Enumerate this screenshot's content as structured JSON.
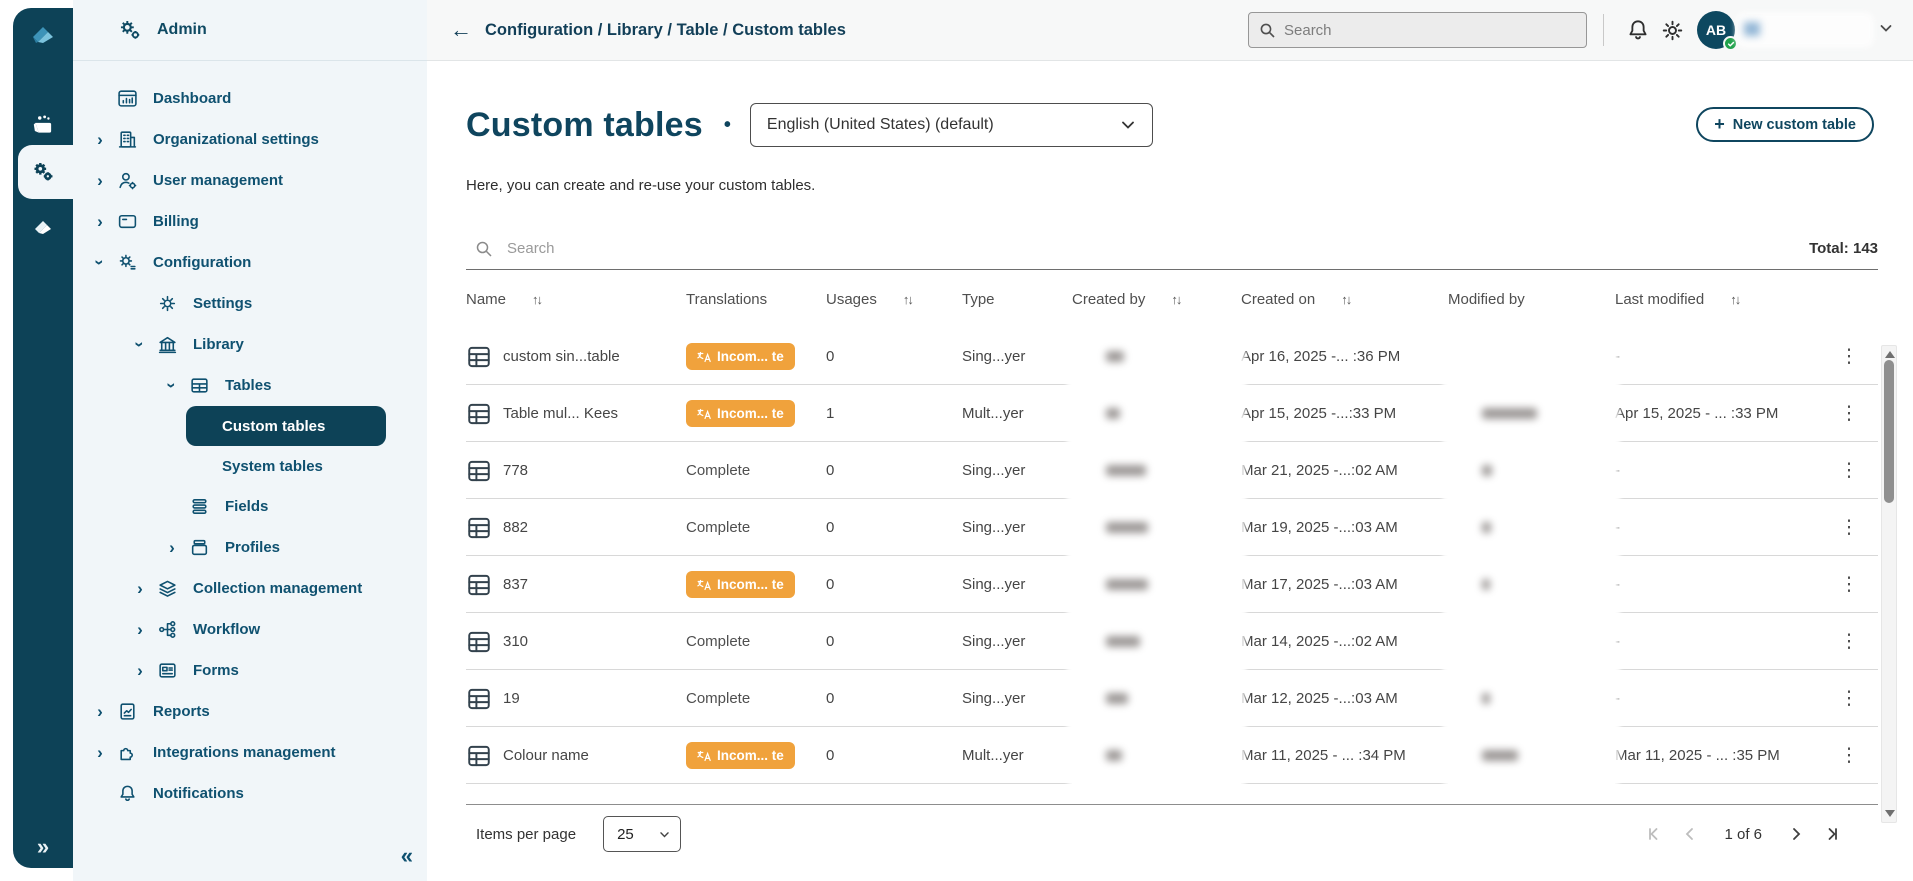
{
  "colors": {
    "rail": "#0d4257",
    "sidebar_bg": "#f1f6f9",
    "accent": "#0f4a63",
    "badge_orange": "#f0a23c",
    "avatar_green": "#21a24c"
  },
  "sidebar": {
    "title": "Admin",
    "items": [
      {
        "label": "Dashboard",
        "icon": "dashboard",
        "level": 0,
        "chevron": null,
        "active": false
      },
      {
        "label": "Organizational settings",
        "icon": "organization",
        "level": 0,
        "chevron": "right",
        "active": false
      },
      {
        "label": "User management",
        "icon": "user",
        "level": 0,
        "chevron": "right",
        "active": false
      },
      {
        "label": "Billing",
        "icon": "billing",
        "level": 0,
        "chevron": "right",
        "active": false
      },
      {
        "label": "Configuration",
        "icon": "configuration",
        "level": 0,
        "chevron": "down",
        "active": false
      },
      {
        "label": "Settings",
        "icon": "gear",
        "level": 1,
        "chevron": null,
        "active": false
      },
      {
        "label": "Library",
        "icon": "library",
        "level": 1,
        "chevron": "down",
        "active": false
      },
      {
        "label": "Tables",
        "icon": "table",
        "level": 2,
        "chevron": "down",
        "active": false
      },
      {
        "label": "Custom tables",
        "icon": null,
        "level": 3,
        "chevron": null,
        "active": true
      },
      {
        "label": "System tables",
        "icon": null,
        "level": 3,
        "chevron": null,
        "active": false
      },
      {
        "label": "Fields",
        "icon": "fields",
        "level": 2,
        "chevron": null,
        "active": false
      },
      {
        "label": "Profiles",
        "icon": "profiles",
        "level": 2,
        "chevron": "right",
        "active": false
      },
      {
        "label": "Collection management",
        "icon": "collection",
        "level": 1,
        "chevron": "right",
        "active": false
      },
      {
        "label": "Workflow",
        "icon": "workflow",
        "level": 1,
        "chevron": "right",
        "active": false
      },
      {
        "label": "Forms",
        "icon": "forms",
        "level": 1,
        "chevron": "right",
        "active": false
      },
      {
        "label": "Reports",
        "icon": "reports",
        "level": 0,
        "chevron": "right",
        "active": false
      },
      {
        "label": "Integrations management",
        "icon": "integrations",
        "level": 0,
        "chevron": "right",
        "active": false
      },
      {
        "label": "Notifications",
        "icon": "bell",
        "level": 0,
        "chevron": null,
        "active": false
      }
    ],
    "collapse_glyph": "«",
    "expand_glyph": "»"
  },
  "topbar": {
    "breadcrumb": "Configuration / Library / Table / Custom tables",
    "back_glyph": "←",
    "search_placeholder": "Search",
    "avatar_initials": "AB"
  },
  "page": {
    "title": "Custom tables",
    "title_separator": "•",
    "language_selector_value": "English (United States) (default)",
    "description": "Here, you can create and re-use your custom tables.",
    "new_table_button": "New custom table",
    "list_search_placeholder": "Search",
    "total_label": "Total: 143"
  },
  "table": {
    "columns": [
      {
        "label": "Name",
        "sortable": true
      },
      {
        "label": "Translations",
        "sortable": false
      },
      {
        "label": "Usages",
        "sortable": true
      },
      {
        "label": "Type",
        "sortable": false
      },
      {
        "label": "Created by",
        "sortable": true
      },
      {
        "label": "Created on",
        "sortable": true
      },
      {
        "label": "Modified by",
        "sortable": false
      },
      {
        "label": "Last modified",
        "sortable": true
      }
    ],
    "incomplete_badge_label": "Incom... te",
    "complete_label": "Complete",
    "rows": [
      {
        "name": "custom sin...table",
        "translations": "incomplete",
        "usages": "0",
        "type": "Sing...yer",
        "created_on": "Apr 16, 2025 -... :36 PM",
        "last_modified": "-",
        "created_by_mark": 18,
        "modified_by_mark": 0
      },
      {
        "name": "Table mul...  Kees",
        "translations": "incomplete",
        "usages": "1",
        "type": "Mult...yer",
        "created_on": "Apr 15, 2025 -...:33 PM",
        "last_modified": "Apr 15, 2025 - ... :33 PM",
        "created_by_mark": 14,
        "modified_by_mark": 55
      },
      {
        "name": "778",
        "translations": "complete",
        "usages": "0",
        "type": "Sing...yer",
        "created_on": "Mar 21, 2025 -...:02 AM",
        "last_modified": "-",
        "created_by_mark": 40,
        "modified_by_mark": 10
      },
      {
        "name": "882",
        "translations": "complete",
        "usages": "0",
        "type": "Sing...yer",
        "created_on": "Mar 19, 2025 -...:03 AM",
        "last_modified": "-",
        "created_by_mark": 42,
        "modified_by_mark": 9
      },
      {
        "name": "837",
        "translations": "incomplete",
        "usages": "0",
        "type": "Sing...yer",
        "created_on": "Mar 17, 2025 -...:03 AM",
        "last_modified": "-",
        "created_by_mark": 42,
        "modified_by_mark": 8
      },
      {
        "name": "310",
        "translations": "complete",
        "usages": "0",
        "type": "Sing...yer",
        "created_on": "Mar 14, 2025 -...:02 AM",
        "last_modified": "-",
        "created_by_mark": 34,
        "modified_by_mark": 0
      },
      {
        "name": "19",
        "translations": "complete",
        "usages": "0",
        "type": "Sing...yer",
        "created_on": "Mar 12, 2025 -...:03 AM",
        "last_modified": "-",
        "created_by_mark": 22,
        "modified_by_mark": 8
      },
      {
        "name": "Colour name",
        "translations": "incomplete",
        "usages": "0",
        "type": "Mult...yer",
        "created_on": "Mar 11, 2025 - ... :34 PM",
        "last_modified": "Mar 11, 2025 - ... :35 PM",
        "created_by_mark": 16,
        "modified_by_mark": 36
      }
    ]
  },
  "pagination": {
    "items_per_page_label": "Items per page",
    "items_per_page_value": "25",
    "page_indicator": "1 of 6"
  }
}
